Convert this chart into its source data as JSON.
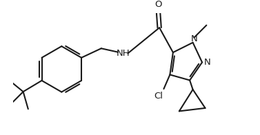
{
  "background_color": "#ffffff",
  "line_color": "#1a1a1a",
  "line_width": 1.5,
  "figsize": [
    3.77,
    1.96
  ],
  "dpi": 100,
  "xlim": [
    0,
    377
  ],
  "ylim": [
    0,
    196
  ]
}
